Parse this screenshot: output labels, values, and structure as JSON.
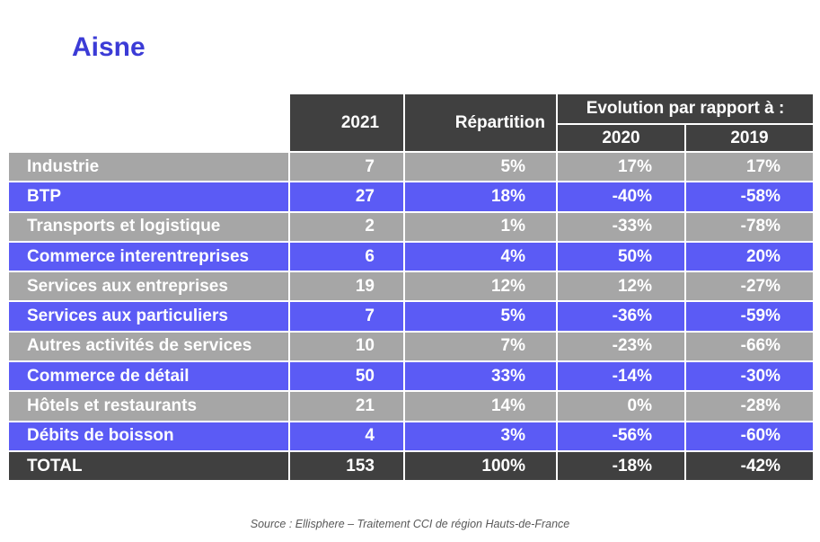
{
  "title": "Aisne",
  "headers": {
    "year": "2021",
    "repartition": "Répartition",
    "evolution": "Evolution par rapport à :",
    "y2020": "2020",
    "y2019": "2019"
  },
  "rows": [
    {
      "label": "Industrie",
      "v2021": "7",
      "rep": "5%",
      "ev2020": "17%",
      "ev2019": "17%"
    },
    {
      "label": "BTP",
      "v2021": "27",
      "rep": "18%",
      "ev2020": "-40%",
      "ev2019": "-58%"
    },
    {
      "label": "Transports et logistique",
      "v2021": "2",
      "rep": "1%",
      "ev2020": "-33%",
      "ev2019": "-78%"
    },
    {
      "label": "Commerce interentreprises",
      "v2021": "6",
      "rep": "4%",
      "ev2020": "50%",
      "ev2019": "20%"
    },
    {
      "label": "Services aux entreprises",
      "v2021": "19",
      "rep": "12%",
      "ev2020": "12%",
      "ev2019": "-27%"
    },
    {
      "label": "Services aux particuliers",
      "v2021": "7",
      "rep": "5%",
      "ev2020": "-36%",
      "ev2019": "-59%"
    },
    {
      "label": "Autres activités de services",
      "v2021": "10",
      "rep": "7%",
      "ev2020": "-23%",
      "ev2019": "-66%"
    },
    {
      "label": "Commerce de détail",
      "v2021": "50",
      "rep": "33%",
      "ev2020": "-14%",
      "ev2019": "-30%"
    },
    {
      "label": "Hôtels et restaurants",
      "v2021": "21",
      "rep": "14%",
      "ev2020": "0%",
      "ev2019": "-28%"
    },
    {
      "label": "Débits de boisson",
      "v2021": "4",
      "rep": "3%",
      "ev2020": "-56%",
      "ev2019": "-60%"
    }
  ],
  "total": {
    "label": "TOTAL",
    "v2021": "153",
    "rep": "100%",
    "ev2020": "-18%",
    "ev2019": "-42%"
  },
  "source": "Source : Ellisphere – Traitement CCI de région Hauts-de-France",
  "colors": {
    "title": "#3b3bd6",
    "header_bg": "#404040",
    "row_gray": "#a6a6a6",
    "row_blue": "#5b5bf5"
  }
}
